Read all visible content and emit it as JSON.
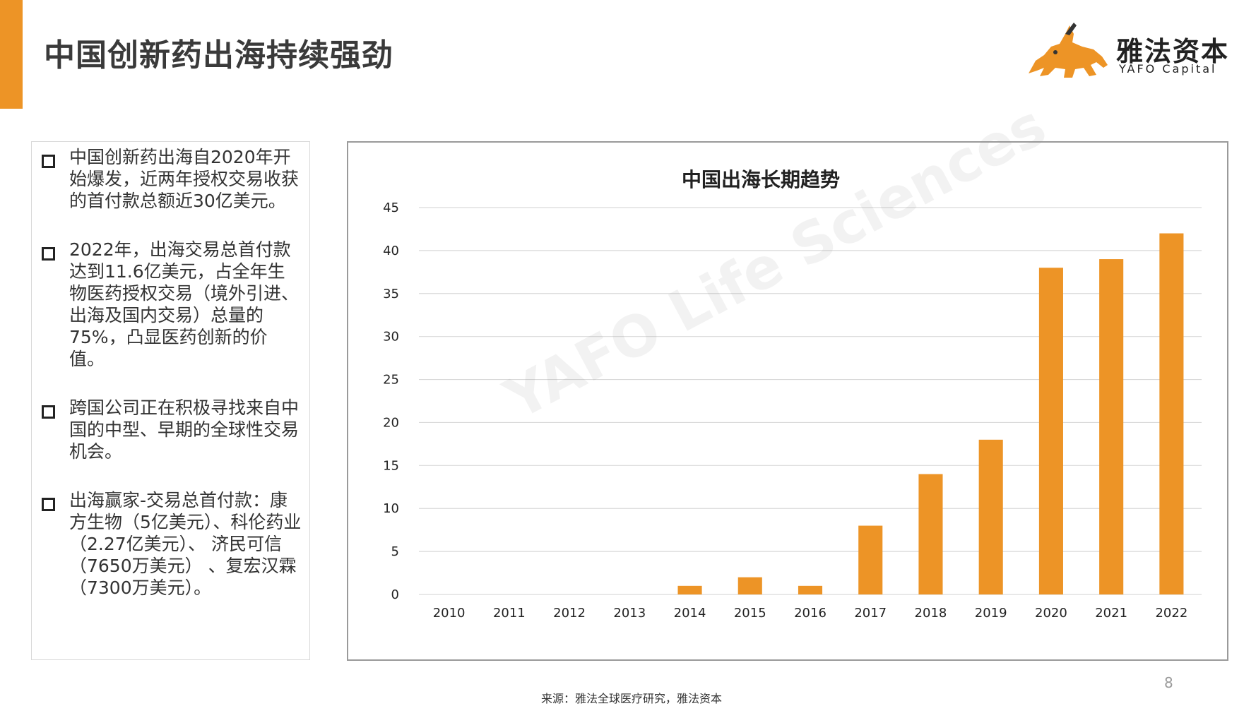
{
  "title": "中国创新药出海持续强劲",
  "logo": {
    "cn": "雅法资本",
    "en": "YAFO Capital"
  },
  "bullets": [
    "中国创新药出海自2020年开始爆发，近两年授权交易收获的首付款总额近30亿美元。",
    "2022年，出海交易总首付款达到11.6亿美元，占全年生物医药授权交易（境外引进、出海及国内交易）总量的75%，凸显医药创新的价值。",
    "跨国公司正在积极寻找来自中国的中型、早期的全球性交易机会。",
    "出海赢家-交易总首付款：康方生物（5亿美元）、科伦药业（2.27亿美元）、 济民可信（7650万美元） 、复宏汉霖（7300万美元）。"
  ],
  "watermark": "YAFO Life Sciences",
  "page_number": "8",
  "source": "来源：雅法全球医疗研究，雅法资本",
  "colors": {
    "accent": "#ED9426",
    "grid": "#d9d9d9"
  },
  "chart_data": {
    "type": "bar",
    "title": "中国出海长期趋势",
    "categories": [
      "2010",
      "2011",
      "2012",
      "2013",
      "2014",
      "2015",
      "2016",
      "2017",
      "2018",
      "2019",
      "2020",
      "2021",
      "2022"
    ],
    "values": [
      0,
      0,
      0,
      0,
      1,
      2,
      1,
      8,
      14,
      18,
      38,
      39,
      42
    ],
    "ylim": [
      0,
      45
    ],
    "yticks": [
      0,
      5,
      10,
      15,
      20,
      25,
      30,
      35,
      40,
      45
    ],
    "grid": true,
    "legend": "none",
    "bar_color": "#ED9426"
  }
}
